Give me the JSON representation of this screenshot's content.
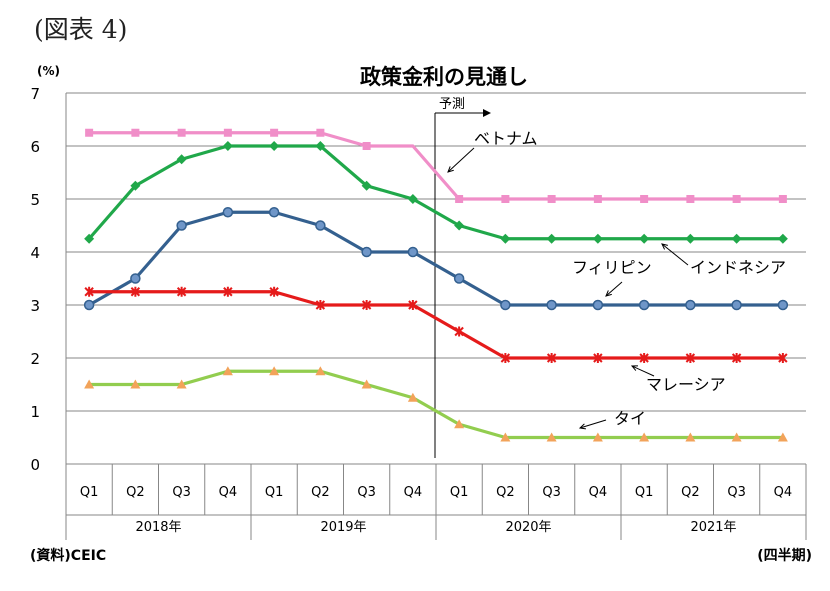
{
  "figure_label": "(図表 4)",
  "source_note": "(資料)CEIC",
  "period_note": "(四半期)",
  "chart_data": {
    "type": "line",
    "title": "政策金利の見通し",
    "ylabel": "(%)",
    "ylim": [
      0,
      7
    ],
    "yticks": [
      "0",
      "1",
      "2",
      "3",
      "4",
      "5",
      "6",
      "7"
    ],
    "categories": [
      "Q1",
      "Q2",
      "Q3",
      "Q4",
      "Q1",
      "Q2",
      "Q3",
      "Q4",
      "Q1",
      "Q2",
      "Q3",
      "Q4",
      "Q1",
      "Q2",
      "Q3",
      "Q4"
    ],
    "years": [
      "2018年",
      "2019年",
      "2020年",
      "2021年"
    ],
    "forecast_label": "予測",
    "forecast_start_index": 8,
    "grid": "horizontal",
    "series": [
      {
        "name": "ベトナム",
        "color": "#f08ec8",
        "marker": "square",
        "values": [
          6.25,
          6.25,
          6.25,
          6.25,
          6.25,
          6.25,
          6.0,
          6.0,
          5.0,
          5.0,
          5.0,
          5.0,
          5.0,
          5.0,
          5.0,
          5.0
        ]
      },
      {
        "name": "インドネシア",
        "color": "#20a84a",
        "marker": "diamond",
        "values": [
          4.25,
          5.25,
          5.75,
          6.0,
          6.0,
          6.0,
          5.25,
          5.0,
          4.5,
          4.25,
          4.25,
          4.25,
          4.25,
          4.25,
          4.25,
          4.25
        ]
      },
      {
        "name": "フィリピン",
        "color": "#34608f",
        "marker": "circle",
        "values": [
          3.0,
          3.5,
          4.5,
          4.75,
          4.75,
          4.5,
          4.0,
          4.0,
          3.5,
          3.0,
          3.0,
          3.0,
          3.0,
          3.0,
          3.0,
          3.0
        ]
      },
      {
        "name": "マレーシア",
        "color": "#e51b1b",
        "marker": "star",
        "values": [
          3.25,
          3.25,
          3.25,
          3.25,
          3.25,
          3.0,
          3.0,
          3.0,
          2.5,
          2.0,
          2.0,
          2.0,
          2.0,
          2.0,
          2.0,
          2.0
        ]
      },
      {
        "name": "タイ",
        "color": "#92cd4f",
        "marker": "triangle",
        "marker_color": "#f2a35a",
        "values": [
          1.5,
          1.5,
          1.5,
          1.75,
          1.75,
          1.75,
          1.5,
          1.25,
          0.75,
          0.5,
          0.5,
          0.5,
          0.5,
          0.5,
          0.5,
          0.5
        ]
      }
    ]
  }
}
